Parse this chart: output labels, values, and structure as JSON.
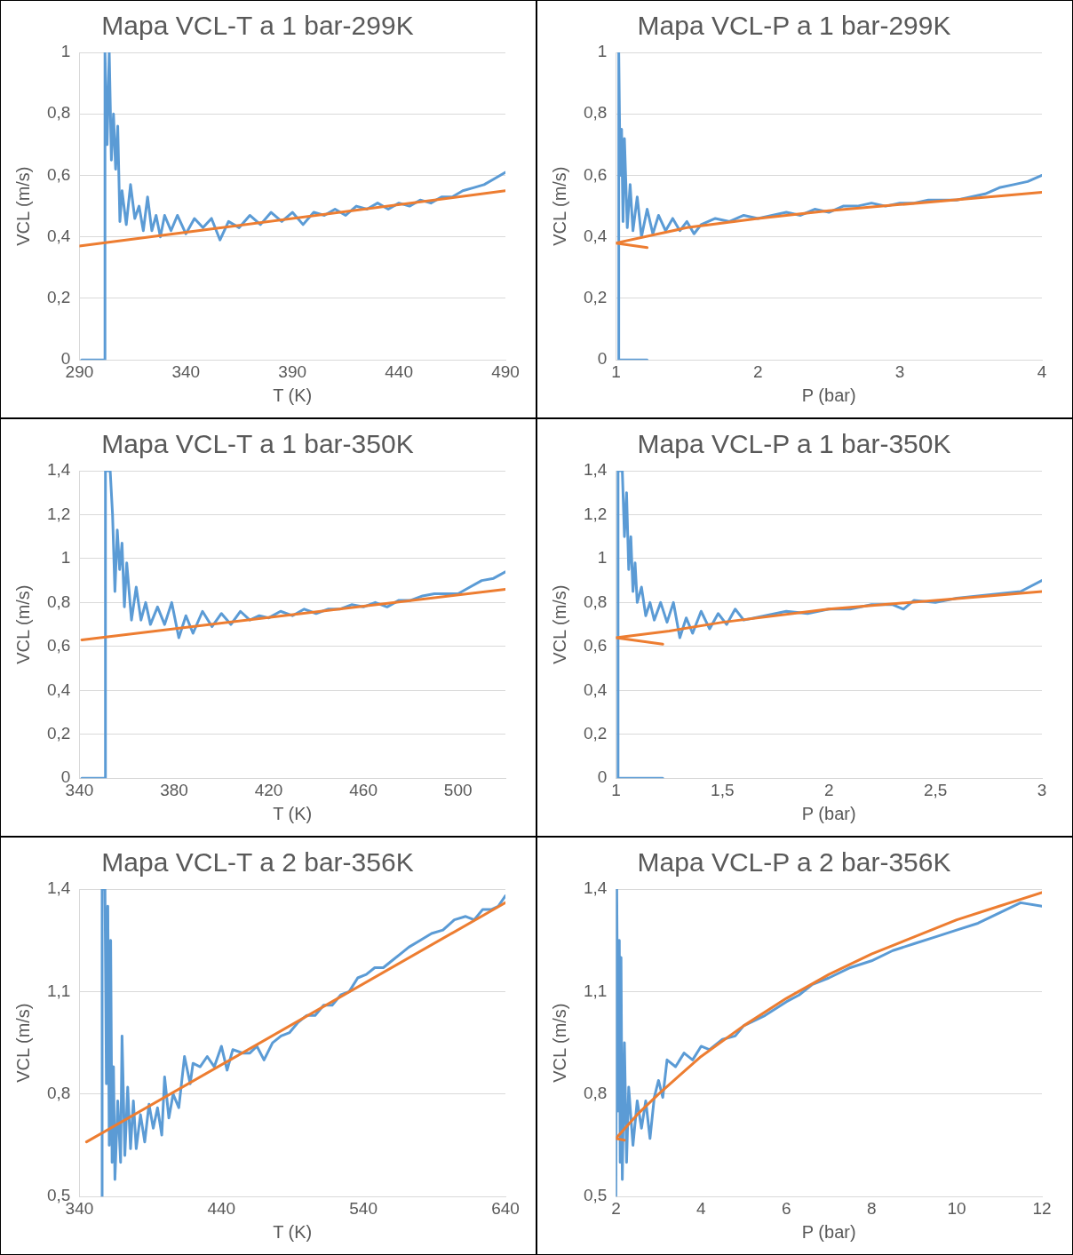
{
  "chart_data": [
    {
      "type": "line",
      "title": "Mapa VCL-T a 1 bar-299K",
      "xlabel": "T (K)",
      "ylabel": "VCL (m/s)",
      "xlim": [
        290,
        490
      ],
      "xticks": [
        290,
        340,
        390,
        440,
        490
      ],
      "ylim": [
        0,
        1
      ],
      "yticks": [
        {
          "value": 0,
          "label": "0"
        },
        {
          "value": 0.2,
          "label": "0,2"
        },
        {
          "value": 0.4,
          "label": "0,4"
        },
        {
          "value": 0.6,
          "label": "0,6"
        },
        {
          "value": 0.8,
          "label": "0,8"
        },
        {
          "value": 1,
          "label": "1"
        }
      ],
      "grid": "y",
      "legend": false,
      "marker": "none",
      "series": [
        {
          "color": "#5b9bd5",
          "x": [
            291,
            302,
            302,
            303,
            304,
            305,
            306,
            307,
            308,
            309,
            310,
            312,
            314,
            316,
            318,
            320,
            322,
            324,
            326,
            328,
            330,
            333,
            336,
            340,
            344,
            348,
            352,
            356,
            360,
            365,
            370,
            375,
            380,
            385,
            390,
            395,
            400,
            405,
            410,
            415,
            420,
            425,
            430,
            435,
            440,
            445,
            450,
            455,
            460,
            465,
            470,
            475,
            480,
            485,
            490
          ],
          "values": [
            0,
            0,
            1,
            0.7,
            1,
            0.65,
            0.8,
            0.62,
            0.76,
            0.45,
            0.55,
            0.44,
            0.57,
            0.46,
            0.5,
            0.42,
            0.53,
            0.42,
            0.47,
            0.4,
            0.47,
            0.42,
            0.47,
            0.41,
            0.46,
            0.43,
            0.46,
            0.39,
            0.45,
            0.43,
            0.47,
            0.44,
            0.48,
            0.45,
            0.48,
            0.44,
            0.48,
            0.47,
            0.49,
            0.47,
            0.5,
            0.49,
            0.51,
            0.49,
            0.51,
            0.5,
            0.52,
            0.51,
            0.53,
            0.53,
            0.55,
            0.56,
            0.57,
            0.59,
            0.61
          ]
        },
        {
          "color": "#ed7d31",
          "x": [
            290,
            490
          ],
          "values": [
            0.37,
            0.55
          ]
        }
      ]
    },
    {
      "type": "line",
      "title": "Mapa VCL-P a 1 bar-299K",
      "xlabel": "P (bar)",
      "ylabel": "VCL (m/s)",
      "xlim": [
        1,
        4
      ],
      "xticks": [
        1,
        2,
        3,
        4
      ],
      "ylim": [
        0,
        1
      ],
      "yticks": [
        {
          "value": 0,
          "label": "0"
        },
        {
          "value": 0.2,
          "label": "0,2"
        },
        {
          "value": 0.4,
          "label": "0,4"
        },
        {
          "value": 0.6,
          "label": "0,6"
        },
        {
          "value": 0.8,
          "label": "0,8"
        },
        {
          "value": 1,
          "label": "1"
        }
      ],
      "grid": "y",
      "legend": false,
      "marker": "none",
      "series": [
        {
          "color": "#5b9bd5",
          "x": [
            1.22,
            1.02,
            1.02,
            1.03,
            1.04,
            1.05,
            1.06,
            1.08,
            1.1,
            1.12,
            1.15,
            1.18,
            1.22,
            1.26,
            1.3,
            1.35,
            1.4,
            1.45,
            1.5,
            1.55,
            1.6,
            1.65,
            1.7,
            1.8,
            1.9,
            2,
            2.1,
            2.2,
            2.3,
            2.4,
            2.5,
            2.6,
            2.7,
            2.8,
            2.9,
            3,
            3.1,
            3.2,
            3.3,
            3.4,
            3.5,
            3.6,
            3.7,
            3.8,
            3.9,
            4
          ],
          "values": [
            0,
            0,
            1,
            0.6,
            0.75,
            0.45,
            0.72,
            0.43,
            0.57,
            0.42,
            0.53,
            0.4,
            0.49,
            0.41,
            0.47,
            0.42,
            0.46,
            0.42,
            0.45,
            0.41,
            0.44,
            0.45,
            0.46,
            0.45,
            0.47,
            0.46,
            0.47,
            0.48,
            0.47,
            0.49,
            0.48,
            0.5,
            0.5,
            0.51,
            0.5,
            0.51,
            0.51,
            0.52,
            0.52,
            0.52,
            0.53,
            0.54,
            0.56,
            0.57,
            0.58,
            0.6
          ]
        },
        {
          "color": "#ed7d31",
          "x": [
            1.22,
            1,
            1.5,
            2,
            2.5,
            3,
            3.5,
            4
          ],
          "values": [
            0.365,
            0.38,
            0.43,
            0.46,
            0.485,
            0.505,
            0.525,
            0.545
          ]
        }
      ]
    },
    {
      "type": "line",
      "title": "Mapa VCL-T a 1 bar-350K",
      "xlabel": "T (K)",
      "ylabel": "VCL (m/s)",
      "xlim": [
        340,
        520
      ],
      "xticks": [
        340,
        380,
        420,
        460,
        500
      ],
      "ylim": [
        0,
        1.4
      ],
      "yticks": [
        {
          "value": 0,
          "label": "0"
        },
        {
          "value": 0.2,
          "label": "0,2"
        },
        {
          "value": 0.4,
          "label": "0,4"
        },
        {
          "value": 0.6,
          "label": "0,6"
        },
        {
          "value": 0.8,
          "label": "0,8"
        },
        {
          "value": 1,
          "label": "1"
        },
        {
          "value": 1.2,
          "label": "1,2"
        },
        {
          "value": 1.4,
          "label": "1,4"
        }
      ],
      "grid": "y",
      "legend": false,
      "marker": "none",
      "series": [
        {
          "color": "#5b9bd5",
          "x": [
            341,
            351,
            351,
            353,
            354,
            355,
            356,
            357,
            358,
            359,
            360,
            362,
            364,
            366,
            368,
            370,
            373,
            376,
            379,
            382,
            385,
            388,
            392,
            396,
            400,
            404,
            408,
            412,
            416,
            420,
            425,
            430,
            435,
            440,
            445,
            450,
            455,
            460,
            465,
            470,
            475,
            480,
            485,
            490,
            495,
            500,
            505,
            510,
            515,
            520
          ],
          "values": [
            0,
            0,
            1.4,
            1.4,
            1.2,
            0.85,
            1.13,
            0.95,
            1.07,
            0.78,
            0.98,
            0.72,
            0.87,
            0.72,
            0.8,
            0.7,
            0.78,
            0.7,
            0.8,
            0.64,
            0.74,
            0.66,
            0.76,
            0.69,
            0.75,
            0.7,
            0.76,
            0.72,
            0.74,
            0.73,
            0.76,
            0.74,
            0.77,
            0.75,
            0.77,
            0.77,
            0.79,
            0.78,
            0.8,
            0.78,
            0.81,
            0.81,
            0.83,
            0.84,
            0.84,
            0.84,
            0.87,
            0.9,
            0.91,
            0.94
          ]
        },
        {
          "color": "#ed7d31",
          "x": [
            341,
            520
          ],
          "values": [
            0.63,
            0.86
          ]
        }
      ]
    },
    {
      "type": "line",
      "title": "Mapa VCL-P a 1 bar-350K",
      "xlabel": "P (bar)",
      "ylabel": "VCL (m/s)",
      "xlim": [
        1,
        3
      ],
      "xticks": [
        1,
        {
          "value": 1.5,
          "label": "1,5"
        },
        2,
        {
          "value": 2.5,
          "label": "2,5"
        },
        3
      ],
      "ylim": [
        0,
        1.4
      ],
      "yticks": [
        {
          "value": 0,
          "label": "0"
        },
        {
          "value": 0.2,
          "label": "0,2"
        },
        {
          "value": 0.4,
          "label": "0,4"
        },
        {
          "value": 0.6,
          "label": "0,6"
        },
        {
          "value": 0.8,
          "label": "0,8"
        },
        {
          "value": 1,
          "label": "1"
        },
        {
          "value": 1.2,
          "label": "1,2"
        },
        {
          "value": 1.4,
          "label": "1,4"
        }
      ],
      "grid": "y",
      "legend": false,
      "marker": "none",
      "series": [
        {
          "color": "#5b9bd5",
          "x": [
            1.22,
            1.01,
            1.01,
            1.03,
            1.04,
            1.05,
            1.06,
            1.07,
            1.08,
            1.09,
            1.1,
            1.12,
            1.14,
            1.16,
            1.18,
            1.21,
            1.24,
            1.27,
            1.3,
            1.33,
            1.36,
            1.4,
            1.44,
            1.48,
            1.52,
            1.56,
            1.6,
            1.7,
            1.8,
            1.9,
            2,
            2.1,
            2.2,
            2.3,
            2.35,
            2.4,
            2.5,
            2.6,
            2.7,
            2.8,
            2.9,
            3
          ],
          "values": [
            0,
            0,
            1.4,
            1.4,
            1.1,
            1.3,
            0.95,
            1.1,
            0.85,
            0.98,
            0.8,
            0.87,
            0.74,
            0.8,
            0.72,
            0.8,
            0.71,
            0.8,
            0.64,
            0.73,
            0.66,
            0.76,
            0.68,
            0.75,
            0.7,
            0.77,
            0.72,
            0.74,
            0.76,
            0.75,
            0.77,
            0.77,
            0.79,
            0.79,
            0.77,
            0.81,
            0.8,
            0.82,
            0.83,
            0.84,
            0.85,
            0.9
          ]
        },
        {
          "color": "#ed7d31",
          "x": [
            1.22,
            1,
            1.25,
            1.5,
            2,
            2.5,
            3
          ],
          "values": [
            0.61,
            0.64,
            0.67,
            0.71,
            0.77,
            0.81,
            0.85
          ]
        }
      ]
    },
    {
      "type": "line",
      "title": "Mapa VCL-T a 2 bar-356K",
      "xlabel": "T (K)",
      "ylabel": "VCL (m/s)",
      "xlim": [
        340,
        640
      ],
      "xticks": [
        340,
        440,
        540,
        640
      ],
      "ylim": [
        0.5,
        1.4
      ],
      "yticks": [
        {
          "value": 0.5,
          "label": "0,5"
        },
        {
          "value": 0.8,
          "label": "0,8"
        },
        {
          "value": 1.1,
          "label": "1,1"
        },
        {
          "value": 1.4,
          "label": "1,4"
        }
      ],
      "grid": "y",
      "legend": false,
      "marker": "none",
      "series": [
        {
          "color": "#5b9bd5",
          "x": [
            356,
            356,
            358,
            359,
            360,
            361,
            362,
            363,
            364,
            365,
            367,
            369,
            370,
            372,
            374,
            376,
            378,
            380,
            383,
            386,
            389,
            392,
            395,
            398,
            400,
            403,
            406,
            410,
            414,
            418,
            420,
            425,
            430,
            435,
            440,
            444,
            448,
            455,
            460,
            465,
            470,
            476,
            482,
            488,
            494,
            500,
            506,
            512,
            518,
            524,
            530,
            536,
            542,
            548,
            554,
            560,
            566,
            572,
            580,
            588,
            596,
            604,
            612,
            618,
            624,
            630,
            635,
            640
          ],
          "values": [
            0.5,
            1.4,
            1.4,
            0.83,
            1.35,
            0.65,
            1.25,
            0.6,
            0.88,
            0.55,
            0.78,
            0.6,
            0.97,
            0.62,
            0.82,
            0.64,
            0.78,
            0.64,
            0.74,
            0.66,
            0.77,
            0.7,
            0.76,
            0.68,
            0.85,
            0.73,
            0.8,
            0.76,
            0.91,
            0.83,
            0.89,
            0.88,
            0.91,
            0.88,
            0.94,
            0.87,
            0.93,
            0.92,
            0.92,
            0.94,
            0.9,
            0.95,
            0.97,
            0.98,
            1.01,
            1.03,
            1.03,
            1.06,
            1.06,
            1.09,
            1.1,
            1.14,
            1.15,
            1.17,
            1.17,
            1.19,
            1.21,
            1.23,
            1.25,
            1.27,
            1.28,
            1.31,
            1.32,
            1.31,
            1.34,
            1.34,
            1.35,
            1.38
          ]
        },
        {
          "color": "#ed7d31",
          "x": [
            345,
            640
          ],
          "values": [
            0.66,
            1.36
          ]
        }
      ]
    },
    {
      "type": "line",
      "title": "Mapa VCL-P a 2 bar-356K",
      "xlabel": "P (bar)",
      "ylabel": "VCL (m/s)",
      "xlim": [
        2,
        12
      ],
      "xticks": [
        2,
        4,
        6,
        8,
        10,
        12
      ],
      "ylim": [
        0.5,
        1.4
      ],
      "yticks": [
        {
          "value": 0.5,
          "label": "0,5"
        },
        {
          "value": 0.8,
          "label": "0,8"
        },
        {
          "value": 1.1,
          "label": "1,1"
        },
        {
          "value": 1.4,
          "label": "1,4"
        }
      ],
      "grid": "y",
      "legend": false,
      "marker": "none",
      "series": [
        {
          "color": "#5b9bd5",
          "x": [
            2,
            2.02,
            2.05,
            2.08,
            2.1,
            2.12,
            2.15,
            2.2,
            2.25,
            2.3,
            2.4,
            2.5,
            2.6,
            2.7,
            2.8,
            2.9,
            3,
            3.1,
            3.2,
            3.4,
            3.6,
            3.8,
            4,
            4.2,
            4.5,
            4.8,
            5,
            5.5,
            6,
            6.3,
            6.6,
            7,
            7.5,
            8,
            8.5,
            9,
            9.5,
            10,
            10.5,
            11,
            11.5,
            12
          ],
          "values": [
            0.5,
            1.4,
            0.75,
            1.25,
            0.6,
            1.2,
            0.55,
            0.95,
            0.6,
            0.82,
            0.65,
            0.78,
            0.7,
            0.78,
            0.67,
            0.79,
            0.84,
            0.79,
            0.9,
            0.88,
            0.92,
            0.9,
            0.94,
            0.93,
            0.96,
            0.97,
            1,
            1.03,
            1.07,
            1.09,
            1.12,
            1.14,
            1.17,
            1.19,
            1.22,
            1.24,
            1.26,
            1.28,
            1.3,
            1.33,
            1.36,
            1.35
          ]
        },
        {
          "color": "#ed7d31",
          "x": [
            2.2,
            2,
            2.5,
            3,
            4,
            5,
            6,
            7,
            8,
            9,
            10,
            11,
            12
          ],
          "values": [
            0.665,
            0.67,
            0.74,
            0.8,
            0.91,
            1,
            1.08,
            1.15,
            1.21,
            1.26,
            1.31,
            1.35,
            1.39
          ]
        }
      ]
    }
  ]
}
